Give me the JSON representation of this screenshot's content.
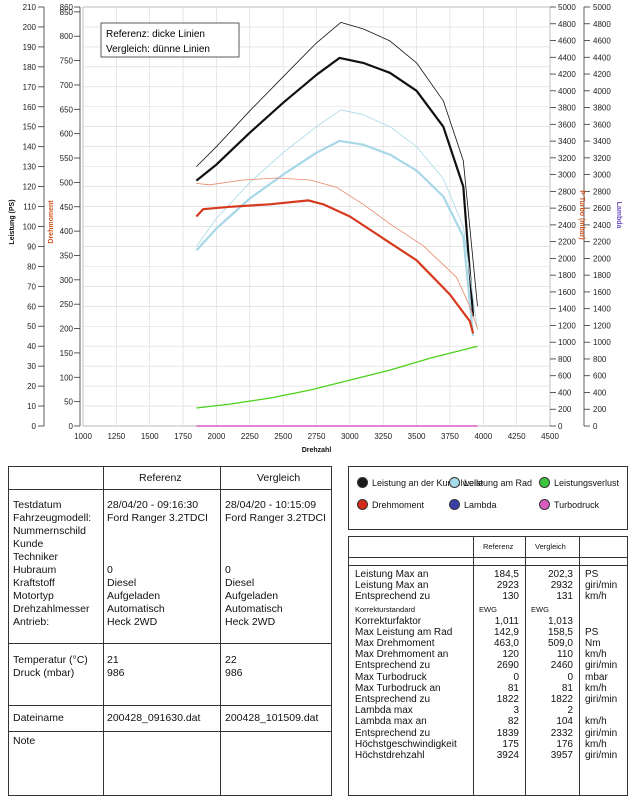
{
  "chart_data": {
    "type": "line",
    "xlabel": "Drehzahl",
    "x_ticks": [
      1000,
      1250,
      1500,
      1750,
      2000,
      2250,
      2500,
      2750,
      3000,
      3250,
      3500,
      3750,
      4000,
      4250,
      4500
    ],
    "xlim": [
      1000,
      4500
    ],
    "left_axes": [
      {
        "label": "Leistung (PS)",
        "range": [
          0,
          210
        ],
        "ticks": [
          0,
          10,
          20,
          30,
          40,
          50,
          60,
          70,
          80,
          90,
          100,
          110,
          120,
          130,
          140,
          150,
          160,
          170,
          180,
          190,
          200,
          210
        ]
      },
      {
        "label": "Drehmoment",
        "range": [
          0,
          860
        ],
        "ticks": [
          0,
          50,
          100,
          150,
          200,
          250,
          300,
          350,
          400,
          450,
          500,
          550,
          600,
          650,
          700,
          750,
          800,
          850,
          860
        ]
      }
    ],
    "right_axes": [
      {
        "label": "P Turbo (mbar)",
        "range": [
          0,
          5000
        ],
        "ticks": [
          0,
          200,
          400,
          600,
          800,
          1000,
          1200,
          1400,
          1600,
          1800,
          2000,
          2200,
          2400,
          2600,
          2800,
          3000,
          3200,
          3400,
          3600,
          3800,
          4000,
          4200,
          4400,
          4600,
          4800,
          5000
        ]
      },
      {
        "label": "Lambda",
        "range": [
          0,
          5000
        ],
        "ticks": [
          0,
          200,
          400,
          600,
          800,
          1000,
          1200,
          1400,
          1600,
          1800,
          2000,
          2200,
          2400,
          2600,
          2800,
          3000,
          3200,
          3400,
          3600,
          3800,
          4000,
          4200,
          4400,
          4600,
          4800,
          5000
        ]
      }
    ],
    "annotation": [
      "Referenz: dicke Linien",
      "Vergleich: dünne Linien"
    ],
    "series": [
      {
        "name": "Leistung an der Kurbelwelle",
        "color": "#111111",
        "width": 2.2,
        "x": [
          1850,
          2000,
          2250,
          2500,
          2750,
          2923,
          3100,
          3300,
          3500,
          3700,
          3850,
          3924
        ],
        "y": [
          123,
          131,
          147,
          162,
          176,
          184.5,
          182,
          177,
          168,
          150,
          120,
          55
        ]
      },
      {
        "name": "Leistung an der Kurbelwelle",
        "color": "#111111",
        "width": 0.8,
        "x": [
          1850,
          2000,
          2250,
          2500,
          2750,
          2932,
          3100,
          3300,
          3500,
          3700,
          3850,
          3957
        ],
        "y": [
          130,
          140,
          158,
          175,
          192,
          202.3,
          199,
          193,
          182,
          163,
          133,
          60
        ]
      },
      {
        "name": "Leistung am Rad",
        "color": "#a8d8e8",
        "width": 2.2,
        "x": [
          1850,
          2000,
          2250,
          2500,
          2750,
          2923,
          3100,
          3300,
          3500,
          3700,
          3850,
          3924
        ],
        "y": [
          88,
          99,
          114,
          126,
          137,
          142.9,
          141,
          136,
          128,
          115,
          95,
          45
        ]
      },
      {
        "name": "Leistung am Rad",
        "color": "#a8d8e8",
        "width": 0.8,
        "x": [
          1850,
          2000,
          2250,
          2500,
          2750,
          2932,
          3100,
          3300,
          3500,
          3700,
          3850,
          3957
        ],
        "y": [
          90,
          104,
          122,
          137,
          150,
          158.5,
          156,
          150,
          140,
          124,
          100,
          48
        ]
      },
      {
        "name": "Drehmoment",
        "color": "#d63a1e",
        "width": 2.2,
        "x": [
          1850,
          1900,
          2100,
          2400,
          2690,
          2800,
          3000,
          3250,
          3500,
          3750,
          3900,
          3924
        ],
        "y": [
          430,
          445,
          450,
          455,
          463,
          455,
          430,
          385,
          340,
          270,
          215,
          190
        ]
      },
      {
        "name": "Drehmoment",
        "color": "#e8866a",
        "width": 0.8,
        "x": [
          1850,
          1950,
          2200,
          2460,
          2700,
          2900,
          3100,
          3300,
          3550,
          3800,
          3900,
          3957
        ],
        "y": [
          498,
          495,
          505,
          509,
          505,
          490,
          455,
          415,
          370,
          305,
          245,
          200
        ]
      },
      {
        "name": "Leistungsverlust",
        "color": "#4cd21a",
        "width": 1.3,
        "x": [
          1850,
          2100,
          2400,
          2700,
          3000,
          3300,
          3600,
          3957
        ],
        "y": [
          9,
          11,
          14,
          18,
          23,
          28,
          34,
          40
        ]
      },
      {
        "name": "Turbodruck",
        "color": "#d75fc8",
        "width": 1.6,
        "x": [
          1850,
          3957
        ],
        "y": [
          0,
          0
        ]
      }
    ],
    "legend": [
      {
        "name": "Leistung an der Kurbelwelle",
        "color": "#1a1a1a"
      },
      {
        "name": "Leistung am Rad",
        "color": "#a8dcec"
      },
      {
        "name": "Leistungsverlust",
        "color": "#3cc43c"
      },
      {
        "name": "Drehmoment",
        "color": "#d42a1a"
      },
      {
        "name": "Lambda",
        "color": "#3b3fa8"
      },
      {
        "name": "Turbodruck",
        "color": "#d95bc0"
      }
    ]
  },
  "info": {
    "col_ref": "Referenz",
    "col_cmp": "Vergleich",
    "labels1": "Testdatum\nFahrzeugmodell:\nNummernschild\nKunde\nTechniker\nHubraum\nKraftstoff\nMotortyp\nDrehzahlmesser\nAntrieb:",
    "ref1": "28/04/20 - 09:16:30\nFord Ranger 3.2TDCI\n\n\n\n0\nDiesel\nAufgeladen\nAutomatisch\nHeck 2WD",
    "cmp1": "28/04/20 - 10:15:09\nFord Ranger 3.2TDCI\n\n\n\n0\nDiesel\nAufgeladen\nAutomatisch\nHeck 2WD",
    "labels2": "Temperatur (°C)\nDruck (mbar)",
    "ref2": "21\n986",
    "cmp2": "22\n986",
    "labels3": "Dateiname",
    "ref3": "200428_091630.dat",
    "cmp3": "200428_101509.dat",
    "labels4": "Note"
  },
  "results": {
    "col_ref": "Referenz",
    "col_cmp": "Vergleich",
    "rows": [
      {
        "label": "Leistung Max an",
        "ref": "184,5",
        "cmp": "202,3",
        "unit": "PS"
      },
      {
        "label": "Leistung Max an",
        "ref": "2923",
        "cmp": "2932",
        "unit": "giri/min"
      },
      {
        "label": "Entsprechend zu",
        "ref": "130",
        "cmp": "131",
        "unit": "km/h"
      },
      {
        "label": "Korrekturstandard",
        "ref": "EWG",
        "cmp": "EWG",
        "unit": "",
        "small": true
      },
      {
        "label": "Korrekturfaktor",
        "ref": "1,011",
        "cmp": "1,013",
        "unit": ""
      },
      {
        "label": "Max Leistung am Rad",
        "ref": "142,9",
        "cmp": "158,5",
        "unit": "PS"
      },
      {
        "label": "Max Drehmoment",
        "ref": "463,0",
        "cmp": "509,0",
        "unit": "Nm"
      },
      {
        "label": "Max Drehmoment an",
        "ref": "120",
        "cmp": "110",
        "unit": "km/h"
      },
      {
        "label": "Entsprechend zu",
        "ref": "2690",
        "cmp": "2460",
        "unit": "giri/min"
      },
      {
        "label": "Max Turbodruck",
        "ref": "0",
        "cmp": "0",
        "unit": "mbar"
      },
      {
        "label": "Max Turbodruck an",
        "ref": "81",
        "cmp": "81",
        "unit": "km/h"
      },
      {
        "label": "Entsprechend zu",
        "ref": "1822",
        "cmp": "1822",
        "unit": "giri/min"
      },
      {
        "label": "Lambda max",
        "ref": "3",
        "cmp": "2",
        "unit": ""
      },
      {
        "label": "Lambda max an",
        "ref": "82",
        "cmp": "104",
        "unit": "km/h"
      },
      {
        "label": "Entsprechend zu",
        "ref": "1839",
        "cmp": "2332",
        "unit": "giri/min"
      },
      {
        "label": "Höchstgeschwindigkeit",
        "ref": "175",
        "cmp": "176",
        "unit": "km/h"
      },
      {
        "label": "Höchstdrehzahl",
        "ref": "3924",
        "cmp": "3957",
        "unit": "giri/min"
      }
    ]
  }
}
